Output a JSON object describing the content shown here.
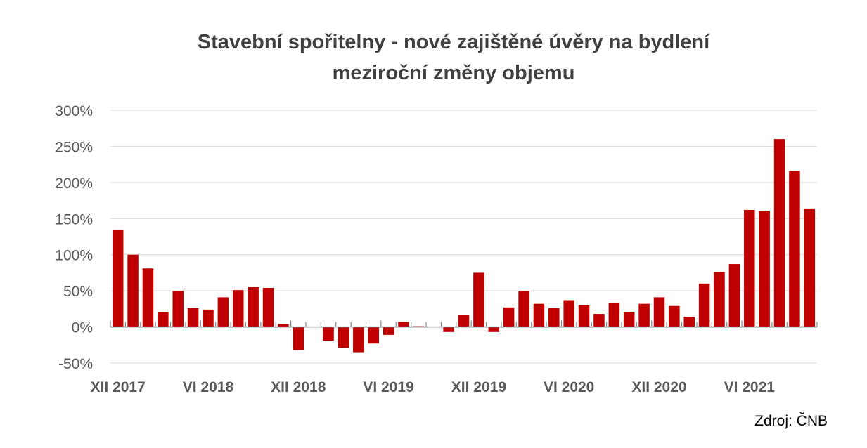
{
  "chart_data": {
    "type": "bar",
    "title": "Stavební spořitelny - nové zajištěné úvěry na bydlení",
    "subtitle": "meziroční změny objemu",
    "xlabel": "",
    "ylabel": "",
    "ylim": [
      -50,
      300
    ],
    "yticks": [
      -50,
      0,
      50,
      100,
      150,
      200,
      250,
      300
    ],
    "ytick_labels": [
      "-50%",
      "0%",
      "50%",
      "100%",
      "150%",
      "200%",
      "250%",
      "300%"
    ],
    "grid": true,
    "color": "#C00000",
    "categories": [
      "XII 2017",
      "I 2018",
      "II 2018",
      "III 2018",
      "IV 2018",
      "V 2018",
      "VI 2018",
      "VII 2018",
      "VIII 2018",
      "IX 2018",
      "X 2018",
      "XI 2018",
      "XII 2018",
      "I 2019",
      "II 2019",
      "III 2019",
      "IV 2019",
      "V 2019",
      "VI 2019",
      "VII 2019",
      "VIII 2019",
      "IX 2019",
      "X 2019",
      "XI 2019",
      "XII 2019",
      "I 2020",
      "II 2020",
      "III 2020",
      "IV 2020",
      "V 2020",
      "VI 2020",
      "VII 2020",
      "VIII 2020",
      "IX 2020",
      "X 2020",
      "XI 2020",
      "XII 2020",
      "I 2021",
      "II 2021",
      "III 2021",
      "IV 2021",
      "V 2021",
      "VI 2021",
      "VII 2021",
      "VIII 2021",
      "IX 2021",
      "X 2021"
    ],
    "values": [
      134,
      100,
      81,
      21,
      50,
      26,
      24,
      41,
      51,
      55,
      54,
      4,
      -32,
      0,
      -19,
      -29,
      -35,
      -23,
      -11,
      7,
      1,
      0,
      -7,
      17,
      75,
      -7,
      27,
      50,
      32,
      26,
      37,
      30,
      18,
      33,
      21,
      32,
      41,
      29,
      14,
      60,
      76,
      87,
      162,
      161,
      260,
      216,
      164
    ],
    "xtick_labels": [
      "XII 2017",
      "VI 2018",
      "XII 2018",
      "VI 2019",
      "XII 2019",
      "VI 2020",
      "XII 2020",
      "VI 2021"
    ],
    "source": "Zdroj: ČNB"
  }
}
